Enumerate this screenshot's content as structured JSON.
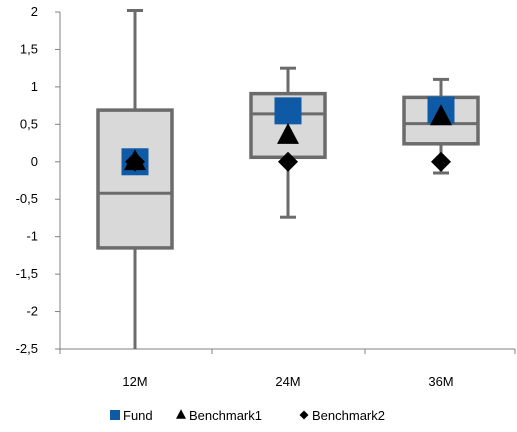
{
  "chart_data": {
    "type": "box",
    "categories": [
      "12M",
      "24M",
      "36M"
    ],
    "ylim": [
      -2.5,
      2
    ],
    "yticks": [
      2,
      1.5,
      1,
      0.5,
      0,
      -0.5,
      -1,
      -1.5,
      -2,
      -2.5
    ],
    "ytick_labels": [
      "2",
      "1,5",
      "1",
      "0,5",
      "0",
      "-0,5",
      "-1",
      "-1,5",
      "-2",
      "-2,5"
    ],
    "boxes": [
      {
        "category": "12M",
        "whisker_low": -2.5,
        "q1": -1.15,
        "median": -0.42,
        "q3": 0.69,
        "whisker_high": 2.02
      },
      {
        "category": "24M",
        "whisker_low": -0.74,
        "q1": 0.06,
        "median": 0.64,
        "q3": 0.91,
        "whisker_high": 1.25
      },
      {
        "category": "36M",
        "whisker_low": -0.15,
        "q1": 0.24,
        "median": 0.51,
        "q3": 0.86,
        "whisker_high": 1.1
      }
    ],
    "series": [
      {
        "name": "Fund",
        "marker": "square",
        "color": "#0e5aa7",
        "values": [
          0.0,
          0.68,
          0.69
        ]
      },
      {
        "name": "Benchmark1",
        "marker": "triangle",
        "color": "#000000",
        "values": [
          0.0,
          0.35,
          0.6
        ]
      },
      {
        "name": "Benchmark2",
        "marker": "diamond",
        "color": "#000000",
        "values": [
          0.0,
          0.0,
          0.0
        ]
      }
    ],
    "legend_position": "bottom",
    "colors": {
      "box_fill": "#d9d9d9",
      "box_stroke": "#6b6b6b",
      "axis": "#808080"
    }
  }
}
